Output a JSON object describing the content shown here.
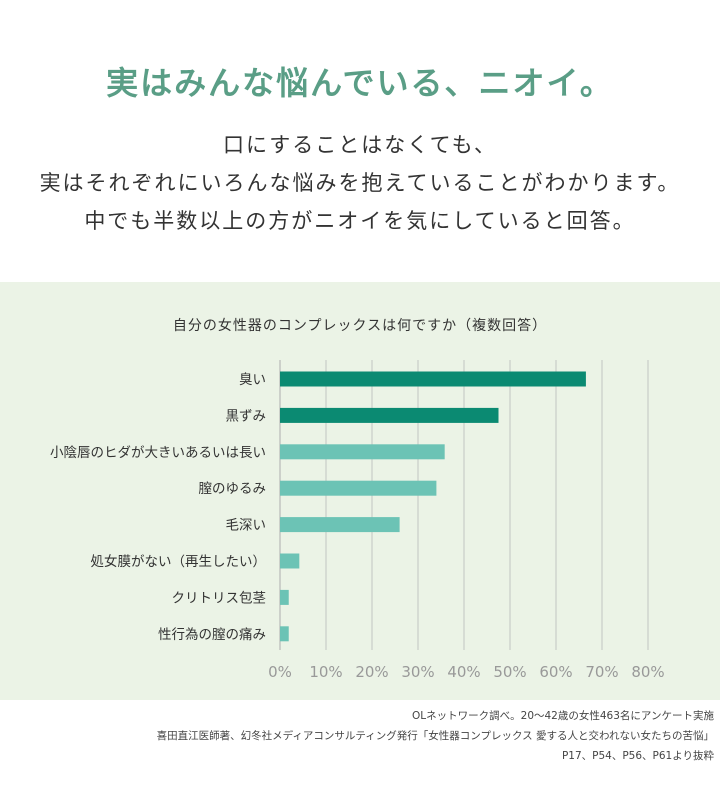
{
  "headline": "実はみんな悩んでいる、ニオイ。",
  "intro": [
    "口にすることはなくても、",
    "実はそれぞれにいろんな悩みを抱えていることがわかります。",
    "中でも半数以上の方がニオイを気にしていると回答。"
  ],
  "footnotes": [
    "OLネットワーク調べ。20〜42歳の女性463名にアンケート実施",
    "喜田直江医師著、幻冬社メディアコンサルティング発行「女性器コンプレックス 愛する人と交われない女たちの苦悩」",
    "P17、P54、P56、P61より抜粋"
  ],
  "colors": {
    "headline": "#5a9e86",
    "panel_bg": "#ebf3e6",
    "bar_dark": "#0b8a72",
    "bar_light": "#6cc3b5",
    "grid": "#b8b8b8",
    "tick_text": "#999999"
  },
  "chart_data": {
    "type": "bar",
    "orientation": "horizontal",
    "title": "自分の女性器のコンプレックスは何ですか（複数回答）",
    "categories": [
      "臭い",
      "黒ずみ",
      "小陰唇のヒダが大きいあるいは長い",
      "膣のゆるみ",
      "毛深い",
      "処女膜がない（再生したい）",
      "クリトリス包茎",
      "性行為の膣の痛み"
    ],
    "values": [
      66.5,
      47.5,
      35.8,
      34.0,
      26.0,
      4.2,
      1.9,
      1.9
    ],
    "highlight": [
      true,
      true,
      false,
      false,
      false,
      false,
      false,
      false
    ],
    "xlim": [
      0,
      80
    ],
    "xticks": [
      "0%",
      "10%",
      "20%",
      "30%",
      "40%",
      "50%",
      "60%",
      "70%",
      "80%"
    ],
    "grid": true
  }
}
